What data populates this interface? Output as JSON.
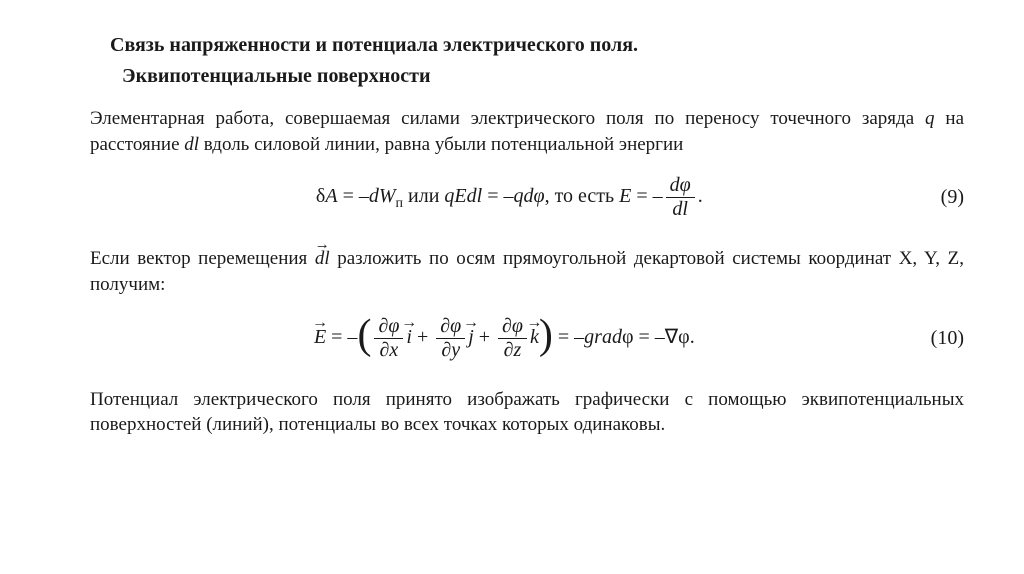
{
  "heading": {
    "title": "Связь напряженности и потенциала электрического поля.",
    "subtitle": "Эквипотенциальные поверхности"
  },
  "p1": {
    "t1": "Элементарная работа, совершаемая силами электрического поля по переносу точечного заряда ",
    "q": "q",
    "t2": " на расстояние ",
    "dl": "dl",
    "t3": " вдоль силовой линии, равна убыли потенциальной энергии"
  },
  "eq9": {
    "delta": "δ",
    "A": "A",
    "eqs1": " = –",
    "dW": "dW",
    "sub_p": "п",
    "or": " или ",
    "qEdl": "qEdl",
    "eqs2": " = –",
    "qdphi": "qdφ",
    "thatis": ", то есть ",
    "E": "E",
    "eqs3": " = –",
    "frac_num": "dφ",
    "frac_den": "dl",
    "period": ".",
    "num": "(9)"
  },
  "p2": {
    "t1": "Если вектор перемещения ",
    "dl": "dl",
    "t2": "  разложить по осям прямоугольной декартовой системы координат X, Y, Z, получим:"
  },
  "eq10": {
    "E": "E",
    "eqs1": " = –",
    "p_num_x": "∂φ",
    "p_den_x": "∂x",
    "i": "i",
    "plus1": " + ",
    "p_num_y": "∂φ",
    "p_den_y": "∂y",
    "j": "j",
    "plus2": " + ",
    "p_num_z": "∂φ",
    "p_den_z": "∂z",
    "k": "k",
    "eqs2": " = –",
    "grad": "grad",
    "phi1": "φ",
    "eqs3": " = –∇",
    "phi2": "φ",
    "period": ".",
    "num": "(10)"
  },
  "p3": "Потенциал электрического поля принято изображать графически с помощью эквипотенциальных поверхностей (линий), потенциалы во всех точках которых одинаковы."
}
